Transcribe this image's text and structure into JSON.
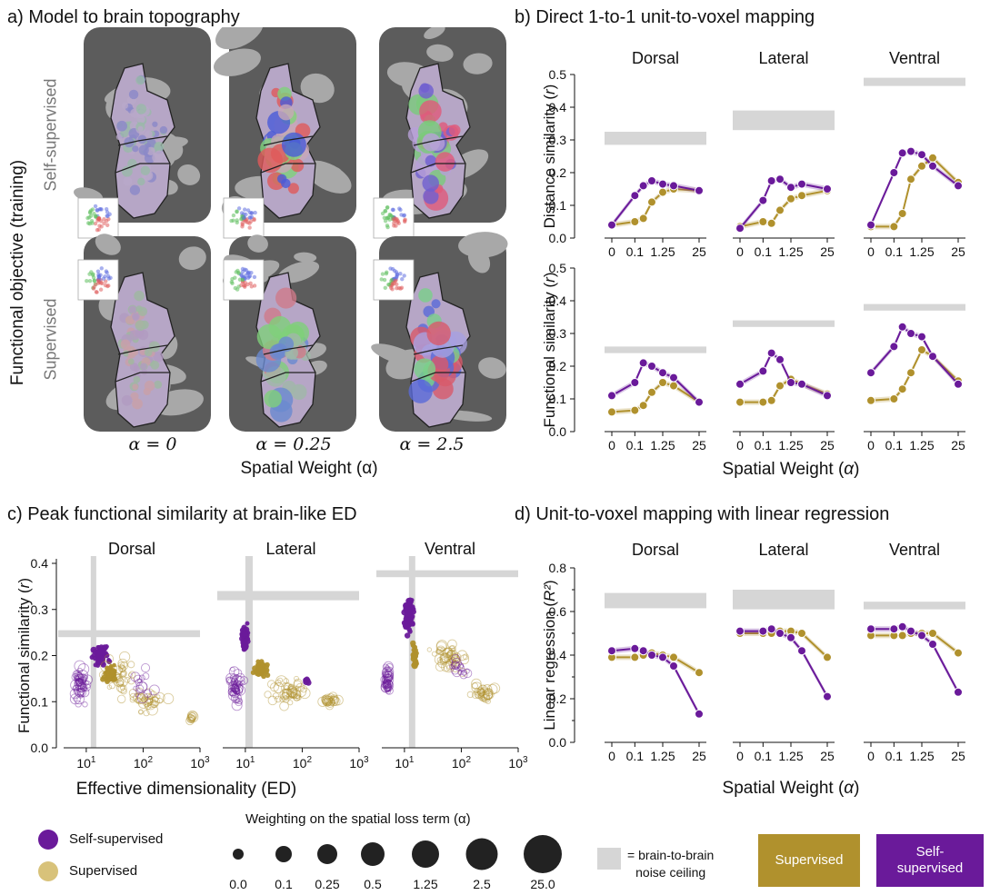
{
  "panels": {
    "a_title": "a) Model to brain topography",
    "b_title": "b) Direct 1-to-1 unit-to-voxel mapping",
    "c_title": "c) Peak functional similarity at brain-like ED",
    "d_title": "d) Unit-to-voxel mapping with linear regression"
  },
  "panel_a": {
    "y_axis_label": "Functional objective (training)",
    "row_labels": [
      "Self-supervised",
      "Supervised"
    ],
    "col_labels": [
      "α = 0",
      "α = 0.25",
      "α = 2.5"
    ],
    "x_axis_label": "Spatial Weight (α)"
  },
  "colors": {
    "self_supervised": "#6a1a9a",
    "supervised": "#b0912d",
    "noise_ceiling": "#d6d6d6",
    "cortex_dark": "#5c5c5c",
    "cortex_light": "#a8a8a8"
  },
  "legend": {
    "self_supervised": "Self-supervised",
    "supervised": "Supervised",
    "weighting_title": "Weighting on the spatial loss term (α)",
    "weights": [
      "0.0",
      "0.1",
      "0.25",
      "0.5",
      "1.25",
      "2.5",
      "25.0"
    ],
    "noise_ceiling": "= brain-to-brain\nnoise ceiling",
    "box_supervised": "Supervised",
    "box_self_supervised": "Self-\nsupervised"
  },
  "chart_data": [
    {
      "id": "b",
      "type": "line",
      "streams": [
        "Dorsal",
        "Lateral",
        "Ventral"
      ],
      "x": [
        "0",
        "0.1",
        "0.25",
        "0.5",
        "1.25",
        "2.5",
        "25"
      ],
      "x_tick_labels": [
        "0",
        "0.1",
        "1.25",
        "25"
      ],
      "xlabel": "Spatial Weight (α)",
      "ylim": [
        0,
        0.5
      ],
      "y_ticks": [
        "0.0",
        "0.1",
        "0.2",
        "0.3",
        "0.4",
        "0.5"
      ],
      "rows": [
        {
          "ylabel": "Distance similarity (r)",
          "noise_ceiling": [
            [
              0.285,
              0.325
            ],
            [
              0.33,
              0.39
            ],
            [
              0.465,
              0.49
            ]
          ],
          "series": [
            {
              "name": "Self-supervised",
              "values": [
                [
                  0.04,
                  0.13,
                  0.16,
                  0.175,
                  0.165,
                  0.16,
                  0.145
                ],
                [
                  0.03,
                  0.115,
                  0.175,
                  0.18,
                  0.155,
                  0.165,
                  0.15
                ],
                [
                  0.04,
                  0.2,
                  0.26,
                  0.265,
                  0.255,
                  0.22,
                  0.16
                ]
              ]
            },
            {
              "name": "Supervised",
              "values": [
                [
                  0.04,
                  0.05,
                  0.06,
                  0.11,
                  0.14,
                  0.15,
                  0.145
                ],
                [
                  0.035,
                  0.05,
                  0.045,
                  0.085,
                  0.12,
                  0.13,
                  0.145
                ],
                [
                  0.035,
                  0.035,
                  0.075,
                  0.18,
                  0.22,
                  0.245,
                  0.17
                ]
              ]
            }
          ]
        },
        {
          "ylabel": "Functional similarity (r)",
          "noise_ceiling": [
            [
              0.24,
              0.26
            ],
            [
              0.32,
              0.34
            ],
            [
              0.37,
              0.39
            ]
          ],
          "series": [
            {
              "name": "Self-supervised",
              "values": [
                [
                  0.11,
                  0.15,
                  0.21,
                  0.2,
                  0.18,
                  0.165,
                  0.09
                ],
                [
                  0.145,
                  0.185,
                  0.24,
                  0.22,
                  0.15,
                  0.145,
                  0.11
                ],
                [
                  0.18,
                  0.26,
                  0.32,
                  0.3,
                  0.29,
                  0.23,
                  0.145
                ]
              ]
            },
            {
              "name": "Supervised",
              "values": [
                [
                  0.06,
                  0.065,
                  0.08,
                  0.12,
                  0.15,
                  0.14,
                  0.09
                ],
                [
                  0.09,
                  0.09,
                  0.095,
                  0.14,
                  0.16,
                  0.145,
                  0.115
                ],
                [
                  0.095,
                  0.1,
                  0.13,
                  0.18,
                  0.25,
                  0.23,
                  0.155
                ]
              ]
            }
          ]
        }
      ]
    },
    {
      "id": "c",
      "type": "scatter",
      "streams": [
        "Dorsal",
        "Lateral",
        "Ventral"
      ],
      "xlabel": "Effective dimensionality (ED)",
      "ylabel": "Functional similarity (r)",
      "x_scale": "log",
      "xlim": [
        4,
        1000
      ],
      "ylim": [
        0,
        0.4
      ],
      "x_tick_labels": [
        "10¹",
        "10²",
        "10³"
      ],
      "y_ticks": [
        "0.0",
        "0.1",
        "0.2",
        "0.3",
        "0.4"
      ],
      "noise_ceiling_x": [
        [
          12,
          15
        ],
        [
          10,
          13.5
        ],
        [
          12,
          15.5
        ]
      ],
      "noise_ceiling_y": [
        [
          0.24,
          0.255
        ],
        [
          0.32,
          0.34
        ],
        [
          0.37,
          0.385
        ]
      ],
      "clusters": [
        [
          {
            "series": "Self-supervised",
            "filled": true,
            "center": [
              18,
              0.2
            ],
            "spread": [
              0.15,
              0.025
            ],
            "n": 60
          },
          {
            "series": "Supervised",
            "filled": true,
            "center": [
              26,
              0.16
            ],
            "spread": [
              0.12,
              0.02
            ],
            "n": 45
          },
          {
            "series": "Self-supervised",
            "filled": false,
            "center": [
              8,
              0.14
            ],
            "spread": [
              0.15,
              0.045
            ],
            "n": 55
          },
          {
            "series": "Supervised",
            "filled": false,
            "center": [
              40,
              0.15
            ],
            "spread": [
              0.3,
              0.05
            ],
            "n": 40
          },
          {
            "series": "Supervised",
            "filled": false,
            "center": [
              120,
              0.1
            ],
            "spread": [
              0.35,
              0.03
            ],
            "n": 35
          },
          {
            "series": "Supervised",
            "filled": false,
            "center": [
              700,
              0.065
            ],
            "spread": [
              0.05,
              0.008
            ],
            "n": 12
          },
          {
            "series": "Self-supervised",
            "filled": false,
            "center": [
              90,
              0.14
            ],
            "spread": [
              0.3,
              0.04
            ],
            "n": 15
          }
        ],
        [
          {
            "series": "Self-supervised",
            "filled": true,
            "center": [
              10,
              0.24
            ],
            "spread": [
              0.08,
              0.03
            ],
            "n": 50
          },
          {
            "series": "Supervised",
            "filled": true,
            "center": [
              18,
              0.17
            ],
            "spread": [
              0.15,
              0.018
            ],
            "n": 45
          },
          {
            "series": "Self-supervised",
            "filled": false,
            "center": [
              7,
              0.13
            ],
            "spread": [
              0.12,
              0.04
            ],
            "n": 50
          },
          {
            "series": "Supervised",
            "filled": false,
            "center": [
              60,
              0.12
            ],
            "spread": [
              0.35,
              0.035
            ],
            "n": 50
          },
          {
            "series": "Supervised",
            "filled": false,
            "center": [
              300,
              0.1
            ],
            "spread": [
              0.2,
              0.012
            ],
            "n": 25
          },
          {
            "series": "Self-supervised",
            "filled": true,
            "center": [
              120,
              0.145
            ],
            "spread": [
              0.05,
              0.006
            ],
            "n": 6
          }
        ],
        [
          {
            "series": "Self-supervised",
            "filled": true,
            "center": [
              12,
              0.29
            ],
            "spread": [
              0.09,
              0.045
            ],
            "n": 80
          },
          {
            "series": "Supervised",
            "filled": true,
            "center": [
              15,
              0.2
            ],
            "spread": [
              0.05,
              0.03
            ],
            "n": 30
          },
          {
            "series": "Self-supervised",
            "filled": false,
            "center": [
              5,
              0.15
            ],
            "spread": [
              0.06,
              0.035
            ],
            "n": 45
          },
          {
            "series": "Supervised",
            "filled": false,
            "center": [
              60,
              0.2
            ],
            "spread": [
              0.35,
              0.04
            ],
            "n": 50
          },
          {
            "series": "Supervised",
            "filled": false,
            "center": [
              250,
              0.12
            ],
            "spread": [
              0.25,
              0.02
            ],
            "n": 30
          },
          {
            "series": "Self-supervised",
            "filled": false,
            "center": [
              100,
              0.17
            ],
            "spread": [
              0.25,
              0.04
            ],
            "n": 15
          }
        ]
      ]
    },
    {
      "id": "d",
      "type": "line",
      "streams": [
        "Dorsal",
        "Lateral",
        "Ventral"
      ],
      "x": [
        "0",
        "0.1",
        "0.25",
        "0.5",
        "1.25",
        "2.5",
        "25"
      ],
      "x_tick_labels": [
        "0",
        "0.1",
        "1.25",
        "25"
      ],
      "xlabel": "Spatial Weight (α)",
      "ylabel": "Linear regression (R²)",
      "ylim": [
        0,
        0.8
      ],
      "y_ticks": [
        "0.0",
        "0.2",
        "0.4",
        "0.6",
        "0.8"
      ],
      "noise_ceiling": [
        [
          0.615,
          0.685
        ],
        [
          0.61,
          0.7
        ],
        [
          0.61,
          0.645
        ]
      ],
      "series": [
        {
          "name": "Self-supervised",
          "values": [
            [
              0.42,
              0.43,
              0.42,
              0.4,
              0.39,
              0.35,
              0.13
            ],
            [
              0.51,
              0.51,
              0.52,
              0.5,
              0.48,
              0.42,
              0.21
            ],
            [
              0.52,
              0.52,
              0.53,
              0.51,
              0.49,
              0.45,
              0.23
            ]
          ]
        },
        {
          "name": "Supervised",
          "values": [
            [
              0.39,
              0.39,
              0.4,
              0.41,
              0.4,
              0.39,
              0.32
            ],
            [
              0.5,
              0.5,
              0.5,
              0.51,
              0.51,
              0.5,
              0.39
            ],
            [
              0.49,
              0.49,
              0.49,
              0.5,
              0.5,
              0.5,
              0.41
            ]
          ]
        }
      ]
    }
  ]
}
